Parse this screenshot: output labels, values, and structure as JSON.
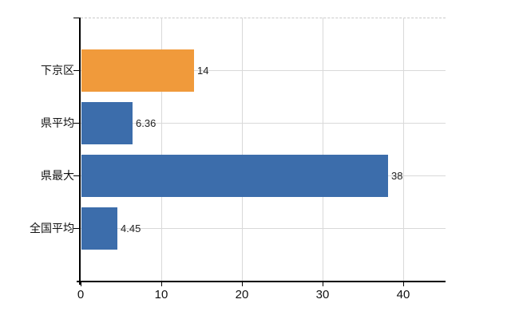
{
  "chart_data": {
    "type": "bar",
    "orientation": "horizontal",
    "title": "",
    "categories": [
      "下京区",
      "県平均",
      "県最大",
      "全国平均"
    ],
    "values": [
      14,
      6.36,
      38,
      4.45
    ],
    "value_labels": [
      "14",
      "6.36",
      "38",
      "4.45"
    ],
    "bar_colors": [
      "#f09a3b",
      "#3c6dab",
      "#3c6dab",
      "#3c6dab"
    ],
    "x_ticks": [
      0,
      10,
      20,
      30,
      40
    ],
    "x_tick_labels": [
      "0",
      "10",
      "20",
      "30",
      "40"
    ],
    "xlim": [
      0,
      45.3
    ],
    "grid": true,
    "legend": "none"
  },
  "colors": {
    "bar_orange": "#f09a3b",
    "bar_blue": "#3c6dab",
    "gridline": "#d9d9d9",
    "top_border": "#c9c9c9",
    "axis": "#000000",
    "text": "#111111"
  }
}
